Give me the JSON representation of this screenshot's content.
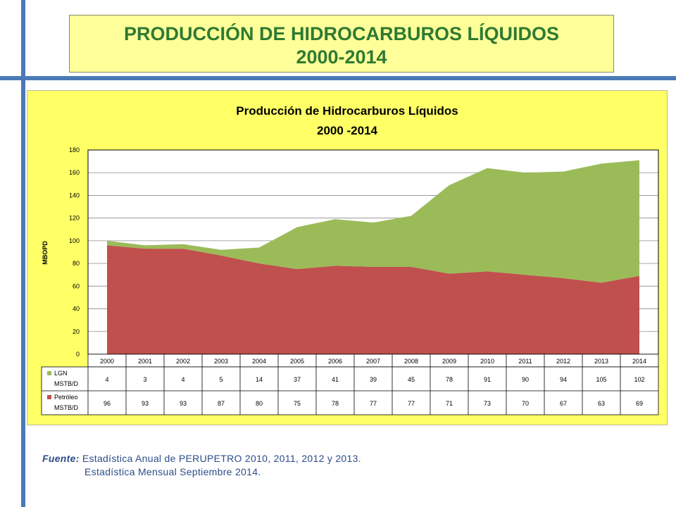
{
  "header": {
    "title_line1": "PRODUCCIÓN DE HIDROCARBUROS LÍQUIDOS",
    "title_line2": "2000-2014"
  },
  "chart_data": {
    "type": "area",
    "stacked": true,
    "title": "Producción de Hidrocarburos Líquidos",
    "subtitle": "2000 -2014",
    "ylabel": "MBOPD",
    "xlabel": "",
    "ylim": [
      0,
      180
    ],
    "yticks": [
      0,
      20,
      40,
      60,
      80,
      100,
      120,
      140,
      160,
      180
    ],
    "grid": true,
    "categories": [
      "2000",
      "2001",
      "2002",
      "2003",
      "2004",
      "2005",
      "2006",
      "2007",
      "2008",
      "2009",
      "2010",
      "2011",
      "2012",
      "2013",
      "2014"
    ],
    "series": [
      {
        "name": "Petróleo",
        "unit": "MSTB/D",
        "color": "#c0504d",
        "values": [
          96,
          93,
          93,
          87,
          80,
          75,
          78,
          77,
          77,
          71,
          73,
          70,
          67,
          63,
          69
        ]
      },
      {
        "name": "LGN",
        "unit": "MSTB/D",
        "color": "#9bbb59",
        "values": [
          4,
          3,
          4,
          5,
          14,
          37,
          41,
          39,
          45,
          78,
          91,
          90,
          94,
          105,
          102
        ]
      }
    ],
    "data_table": true
  },
  "footer": {
    "source_label": "Fuente:",
    "source_line1": " Estadística Anual de PERUPETRO 2010, 2011, 2012 y 2013.",
    "source_line2": "Estadística Mensual Septiembre 2014."
  }
}
